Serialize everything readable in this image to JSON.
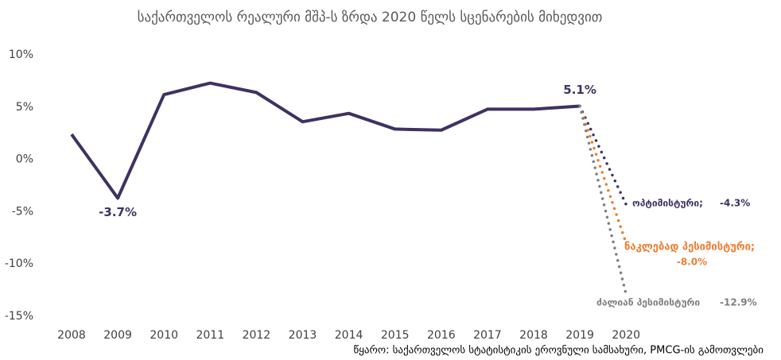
{
  "chart_data": {
    "type": "line",
    "title": "საქართველოს რეალური მშპ-ს ზრდა 2020 წელს სცენარების მიხედვით",
    "source": "წყარო: საქართველოს სტატისტიკის ეროვნული სამსახური, PMCG-ის გამოთვლები",
    "categories": [
      "2008",
      "2009",
      "2010",
      "2011",
      "2012",
      "2013",
      "2014",
      "2015",
      "2016",
      "2017",
      "2018",
      "2019",
      "2020"
    ],
    "ylim": [
      -15,
      10
    ],
    "yticks": [
      {
        "value": -15,
        "label": "-15%"
      },
      {
        "value": -10,
        "label": "-10%"
      },
      {
        "value": -5,
        "label": "-5%"
      },
      {
        "value": 0,
        "label": "0%"
      },
      {
        "value": 5,
        "label": "5%"
      },
      {
        "value": 10,
        "label": "10%"
      }
    ],
    "grid": false,
    "series": [
      {
        "name": null,
        "color": "#3f3262",
        "style": "solid",
        "values": [
          2.4,
          -3.7,
          6.2,
          7.3,
          6.4,
          3.6,
          4.4,
          2.9,
          2.8,
          4.8,
          4.8,
          5.1,
          null
        ],
        "value_labels": [
          null,
          "-3.7%",
          null,
          null,
          null,
          null,
          null,
          null,
          null,
          null,
          null,
          "5.1%",
          null
        ]
      },
      {
        "name": "ოპტიმისტური;",
        "color": "#3f3262",
        "style": "dotted",
        "values": [
          null,
          null,
          null,
          null,
          null,
          null,
          null,
          null,
          null,
          null,
          null,
          5.1,
          -4.3
        ],
        "value_labels": [
          null,
          null,
          null,
          null,
          null,
          null,
          null,
          null,
          null,
          null,
          null,
          null,
          "-4.3%"
        ]
      },
      {
        "name": "ნაკლებად პესიმისტური;",
        "color": "#ed7d31",
        "style": "dotted",
        "values": [
          null,
          null,
          null,
          null,
          null,
          null,
          null,
          null,
          null,
          null,
          null,
          5.1,
          -8.0
        ],
        "value_labels": [
          null,
          null,
          null,
          null,
          null,
          null,
          null,
          null,
          null,
          null,
          null,
          null,
          "-8.0%"
        ]
      },
      {
        "name": "ძალიან პესიმისტური",
        "color": "#7f7f7f",
        "style": "dotted",
        "values": [
          null,
          null,
          null,
          null,
          null,
          null,
          null,
          null,
          null,
          null,
          null,
          5.1,
          -12.9
        ],
        "value_labels": [
          null,
          null,
          null,
          null,
          null,
          null,
          null,
          null,
          null,
          null,
          null,
          null,
          "-12.9%"
        ]
      }
    ]
  }
}
